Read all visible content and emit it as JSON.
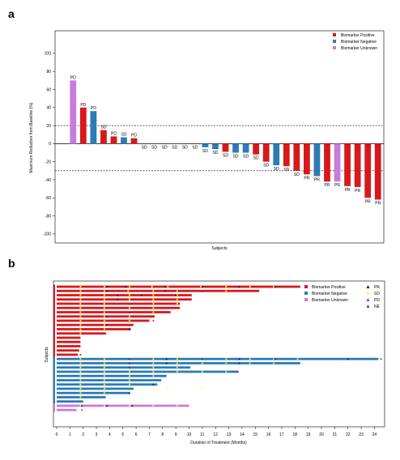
{
  "panel_a": {
    "label": "a"
  },
  "panel_b": {
    "label": "b"
  },
  "colors": {
    "positive": "#d7191c",
    "negative": "#2c7bb6",
    "unknown": "#c77cdb",
    "pr_marker": "#0c1c8c",
    "sd_marker": "#ffff33",
    "pd_marker": "#cc2a7a",
    "ne_marker": "#8b4513"
  },
  "chart_data": [
    {
      "type": "bar",
      "title": "",
      "xlabel": "Subjects",
      "ylabel": "Maximum Reduction from Baseline (%)",
      "ylim": [
        -110,
        125
      ],
      "yticks": [
        -100,
        -80,
        -60,
        -40,
        -20,
        0,
        20,
        40,
        60,
        80,
        100
      ],
      "reference_lines": [
        20,
        -30
      ],
      "legend": {
        "placement": "top-right",
        "entries": [
          "Biomarker Positive",
          "Biomarker Negative",
          "Biomarker Unknown"
        ]
      },
      "bars": [
        {
          "value": 70,
          "group": "unknown",
          "label": "PD"
        },
        {
          "value": 40,
          "group": "positive",
          "label": "PD"
        },
        {
          "value": 36,
          "group": "negative",
          "label": "PD"
        },
        {
          "value": 15,
          "group": "positive",
          "label": "SD"
        },
        {
          "value": 8,
          "group": "positive",
          "label": "PD"
        },
        {
          "value": 7,
          "group": "negative",
          "label": "SD"
        },
        {
          "value": 6,
          "group": "positive",
          "label": "PD"
        },
        {
          "value": 0,
          "group": "positive",
          "label": "SD"
        },
        {
          "value": 0,
          "group": "negative",
          "label": "SD"
        },
        {
          "value": 0,
          "group": "positive",
          "label": "SD"
        },
        {
          "value": 0,
          "group": "negative",
          "label": "SD"
        },
        {
          "value": 0,
          "group": "positive",
          "label": "SD"
        },
        {
          "value": 0,
          "group": "positive",
          "label": "SD"
        },
        {
          "value": -4,
          "group": "negative",
          "label": "SD"
        },
        {
          "value": -6,
          "group": "negative",
          "label": "SD"
        },
        {
          "value": -9,
          "group": "positive",
          "label": "SD"
        },
        {
          "value": -10,
          "group": "negative",
          "label": "SD"
        },
        {
          "value": -10,
          "group": "negative",
          "label": "SD"
        },
        {
          "value": -12,
          "group": "positive",
          "label": "SD"
        },
        {
          "value": -20,
          "group": "positive",
          "label": "SD"
        },
        {
          "value": -24,
          "group": "negative",
          "label": "SD"
        },
        {
          "value": -25,
          "group": "positive",
          "label": "SD"
        },
        {
          "value": -30,
          "group": "positive",
          "label": "SD"
        },
        {
          "value": -34,
          "group": "positive",
          "label": "PR"
        },
        {
          "value": -36,
          "group": "negative",
          "label": "PR"
        },
        {
          "value": -42,
          "group": "positive",
          "label": "PR"
        },
        {
          "value": -42,
          "group": "unknown",
          "label": "PR"
        },
        {
          "value": -47,
          "group": "positive",
          "label": "PR"
        },
        {
          "value": -48,
          "group": "positive",
          "label": "PR"
        },
        {
          "value": -60,
          "group": "positive",
          "label": "PR"
        },
        {
          "value": -62,
          "group": "positive",
          "label": "PR"
        }
      ]
    },
    {
      "type": "swimmer",
      "title": "",
      "xlabel": "Duration of Treatment (Months)",
      "ylabel": "Subjects",
      "xlim": [
        0,
        25
      ],
      "xticks": [
        0,
        1,
        2,
        3,
        4,
        5,
        6,
        7,
        8,
        9,
        10,
        11,
        12,
        13,
        14,
        15,
        16,
        17,
        18,
        19,
        20,
        21,
        22,
        23,
        24
      ],
      "legend": {
        "placement": "top-right",
        "entries": [
          "Biomarker Positive",
          "Biomarker Negative",
          "Biomarker Unknown"
        ],
        "markers": [
          "PR",
          "SD",
          "PD",
          "NE"
        ]
      },
      "lanes": [
        {
          "duration": 18.4,
          "group": "positive",
          "sd": [
            1.8,
            3.6,
            5.5,
            7.2,
            8.4,
            10.9,
            12.8,
            14.6,
            16.4
          ],
          "pr": [
            3.8,
            5.2,
            8.2,
            11.0,
            13.8,
            16.5
          ]
        },
        {
          "duration": 15.3,
          "group": "positive",
          "sd": [
            1.8,
            3.6,
            5.4,
            7.3,
            9.1,
            11.0,
            12.8
          ],
          "pr": [
            3.8,
            8.2,
            11.0
          ]
        },
        {
          "duration": 10.2,
          "group": "positive",
          "sd": [
            1.8,
            3.6,
            5.5,
            7.3,
            9.1
          ],
          "pr": [
            4.6,
            6.4,
            9.0
          ]
        },
        {
          "duration": 10.2,
          "group": "positive",
          "sd": [
            1.8,
            3.6,
            5.5,
            7.3,
            9.1
          ],
          "pr": [
            4.6
          ]
        },
        {
          "duration": 9.3,
          "group": "positive",
          "sd": [
            1.8,
            3.6,
            5.5,
            7.3,
            9.1
          ],
          "pr": [
            5.5
          ]
        },
        {
          "duration": 9.3,
          "group": "positive",
          "sd": [
            1.8,
            3.6,
            5.5,
            7.3
          ],
          "pr": []
        },
        {
          "duration": 8.6,
          "group": "positive",
          "sd": [
            1.8,
            3.6,
            5.5,
            7.3
          ],
          "pr": [
            5.5
          ]
        },
        {
          "duration": 7.4,
          "group": "positive",
          "sd": [
            1.8,
            3.6,
            5.5
          ],
          "pr": [
            3.8
          ]
        },
        {
          "duration": 7.0,
          "group": "positive",
          "sd": [
            1.8,
            3.6,
            5.5
          ],
          "pr": [],
          "pd": 7.3
        },
        {
          "duration": 5.8,
          "group": "positive",
          "sd": [
            1.8,
            3.6
          ],
          "pr": [
            3.8
          ]
        },
        {
          "duration": 5.6,
          "group": "positive",
          "sd": [
            1.8,
            3.6
          ],
          "pr": [
            5.5
          ]
        },
        {
          "duration": 3.7,
          "group": "positive",
          "sd": [
            1.8
          ],
          "pr": [],
          "pd": 3.7
        },
        {
          "duration": 1.8,
          "group": "positive",
          "sd": [],
          "pr": []
        },
        {
          "duration": 1.8,
          "group": "positive",
          "sd": [],
          "pr": []
        },
        {
          "duration": 1.8,
          "group": "positive",
          "sd": [],
          "pr": []
        },
        {
          "duration": 1.7,
          "group": "positive",
          "sd": [],
          "pr": []
        },
        {
          "duration": 1.6,
          "group": "positive",
          "sd": [],
          "pr": [],
          "ne": 1.8
        },
        {
          "duration": 24.3,
          "group": "negative",
          "sd": [
            1.8,
            3.6,
            5.5,
            7.3,
            9.1,
            11.0,
            12.8,
            14.6,
            16.4,
            18.2
          ],
          "pr": [
            5.5,
            8.3,
            11.0,
            13.8,
            16.5,
            22.0
          ],
          "ne": 24.5
        },
        {
          "duration": 18.4,
          "group": "negative",
          "sd": [
            1.8,
            3.6,
            5.5,
            7.3,
            9.1,
            11.0,
            12.8,
            14.6,
            16.4
          ],
          "pr": [
            5.5,
            8.3,
            13.8
          ]
        },
        {
          "duration": 10.1,
          "group": "negative",
          "sd": [
            1.8,
            3.6,
            5.5,
            7.3,
            9.1
          ],
          "pr": [
            5.5
          ]
        },
        {
          "duration": 13.7,
          "group": "negative",
          "sd": [
            1.8,
            3.6,
            5.5,
            7.3,
            9.1,
            11.0,
            12.8
          ],
          "pr": [],
          "pd": 13.7
        },
        {
          "duration": 8.3,
          "group": "negative",
          "sd": [
            1.8,
            3.6,
            5.5,
            7.3
          ],
          "pr": []
        },
        {
          "duration": 7.9,
          "group": "negative",
          "sd": [
            1.8,
            3.6,
            5.5
          ],
          "pr": []
        },
        {
          "duration": 7.6,
          "group": "negative",
          "sd": [
            1.8,
            3.6,
            5.5
          ],
          "pr": [
            7.3
          ]
        },
        {
          "duration": 5.8,
          "group": "negative",
          "sd": [
            1.8,
            3.6,
            8.3,
            11.0
          ],
          "pr": []
        },
        {
          "duration": 5.5,
          "group": "negative",
          "sd": [
            1.8,
            3.6
          ],
          "pr": [
            5.5
          ]
        },
        {
          "duration": 3.7,
          "group": "negative",
          "sd": [
            1.8
          ],
          "pr": []
        },
        {
          "duration": 2.0,
          "group": "negative",
          "sd": [],
          "pr": []
        },
        {
          "duration": 10.0,
          "group": "unknown",
          "sd": [
            1.8,
            3.6,
            5.5,
            7.3,
            9.1
          ],
          "pr": [
            1.9,
            3.8,
            5.7
          ]
        },
        {
          "duration": 1.5,
          "group": "unknown",
          "sd": [],
          "pr": [],
          "pd": 1.9
        }
      ]
    }
  ]
}
